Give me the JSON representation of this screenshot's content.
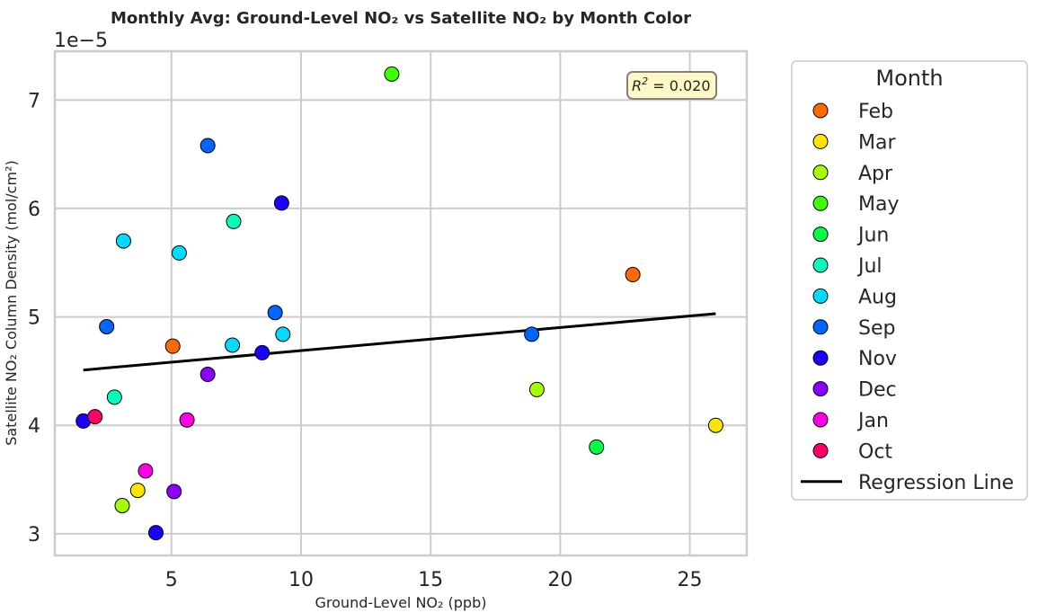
{
  "chart_data": {
    "type": "scatter",
    "title": "Monthly Avg: Ground-Level NO₂ vs Satellite NO₂ by Month Color",
    "xlabel": "Ground-Level NO₂ (ppb)",
    "ylabel": "Satellite NO₂ Column Density (mol/cm²)",
    "y_offset_label": "1e−5",
    "xlim": [
      0.5,
      27.2
    ],
    "ylim": [
      2.8,
      7.45
    ],
    "x_ticks": [
      5,
      10,
      15,
      20,
      25
    ],
    "x_tick_labels": [
      "5",
      "10",
      "15",
      "20",
      "25"
    ],
    "y_ticks": [
      3,
      4,
      5,
      6,
      7
    ],
    "y_tick_labels": [
      "3",
      "4",
      "5",
      "6",
      "7"
    ],
    "grid": true,
    "legend_title": "Month",
    "legend_position": "outside-right",
    "annotation": {
      "prefix": "R",
      "exponent": "2",
      "text": " = 0.020"
    },
    "series": [
      {
        "name": "Feb",
        "color": "#ff6a00",
        "x": [
          22.8,
          5.05
        ],
        "y": [
          5.39,
          4.73
        ]
      },
      {
        "name": "Mar",
        "color": "#ffe600",
        "x": [
          26.0,
          3.7
        ],
        "y": [
          4.0,
          3.4
        ]
      },
      {
        "name": "Apr",
        "color": "#a6ff00",
        "x": [
          19.1,
          3.1
        ],
        "y": [
          4.33,
          3.26
        ]
      },
      {
        "name": "May",
        "color": "#3dff00",
        "x": [
          13.5
        ],
        "y": [
          7.24
        ]
      },
      {
        "name": "Jun",
        "color": "#00ff48",
        "x": [
          21.4
        ],
        "y": [
          3.8
        ]
      },
      {
        "name": "Jul",
        "color": "#00ffbb",
        "x": [
          7.4,
          2.8
        ],
        "y": [
          5.88,
          4.26
        ]
      },
      {
        "name": "Aug",
        "color": "#00dcff",
        "x": [
          3.15,
          5.3,
          7.35,
          9.3
        ],
        "y": [
          5.7,
          5.59,
          4.74,
          4.84
        ]
      },
      {
        "name": "Sep",
        "color": "#0066ff",
        "x": [
          6.4,
          2.5,
          9.0,
          18.9
        ],
        "y": [
          6.58,
          4.91,
          5.04,
          4.84
        ]
      },
      {
        "name": "Nov",
        "color": "#1a00ff",
        "x": [
          9.25,
          8.5,
          1.6,
          4.4
        ],
        "y": [
          6.05,
          4.67,
          4.04,
          3.01
        ]
      },
      {
        "name": "Dec",
        "color": "#8c00ff",
        "x": [
          6.4,
          5.1
        ],
        "y": [
          4.47,
          3.39
        ]
      },
      {
        "name": "Jan",
        "color": "#ff00e6",
        "x": [
          5.6,
          4.0
        ],
        "y": [
          4.05,
          3.58
        ]
      },
      {
        "name": "Oct",
        "color": "#ff0066",
        "x": [
          2.05
        ],
        "y": [
          4.08
        ]
      }
    ],
    "regression": {
      "name": "Regression Line",
      "color": "#000000",
      "x": [
        1.6,
        26.0
      ],
      "y": [
        4.51,
        5.03
      ]
    }
  }
}
